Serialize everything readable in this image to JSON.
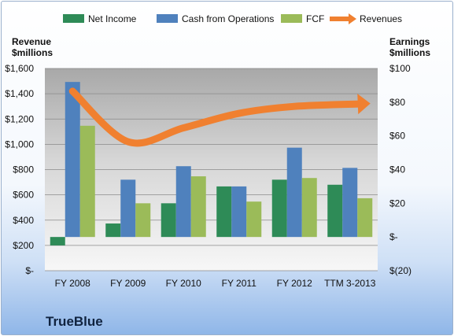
{
  "chart_data": {
    "type": "bar",
    "categories": [
      "FY 2008",
      "FY 2009",
      "FY 2010",
      "FY 2011",
      "FY 2012",
      "TTM 3-2013"
    ],
    "legend": {
      "position": "top",
      "items": [
        {
          "label": "Net Income",
          "color": "#2e8b57",
          "marker": "rect"
        },
        {
          "label": "Cash from Operations",
          "color": "#4f81bd",
          "marker": "rect"
        },
        {
          "label": "FCF",
          "color": "#9bbb59",
          "marker": "rect"
        },
        {
          "label": "Revenues",
          "color": "#f08030",
          "marker": "arrow"
        }
      ]
    },
    "series": [
      {
        "name": "Net Income",
        "axis": "right",
        "color": "#2e8b57",
        "values": [
          -5,
          8,
          20,
          30,
          34,
          31
        ]
      },
      {
        "name": "Cash from Operations",
        "axis": "right",
        "color": "#4f81bd",
        "values": [
          92,
          34,
          42,
          30,
          53,
          41
        ]
      },
      {
        "name": "FCF",
        "axis": "right",
        "color": "#9bbb59",
        "values": [
          66,
          20,
          36,
          21,
          35,
          23
        ]
      },
      {
        "name": "Revenues",
        "axis": "left",
        "type": "line",
        "color": "#f08030",
        "values": [
          1420,
          1020,
          1130,
          1245,
          1300,
          1320
        ]
      }
    ],
    "left_axis": {
      "label": "Revenue $millions",
      "label_lines": [
        "Revenue",
        "$millions"
      ],
      "min": 0,
      "max": 1600,
      "step": 200,
      "ticks": [
        "$-",
        "$200",
        "$400",
        "$600",
        "$800",
        "$1,000",
        "$1,200",
        "$1,400",
        "$1,600"
      ]
    },
    "right_axis": {
      "label": "Earnings $millions",
      "label_lines": [
        "Earnings",
        "$millions"
      ],
      "min": -20,
      "max": 100,
      "step": 20,
      "ticks": [
        "$(20)",
        "$-",
        "$20",
        "$40",
        "$60",
        "$80",
        "$100"
      ]
    },
    "grid": true
  },
  "company_name": "TrueBlue"
}
